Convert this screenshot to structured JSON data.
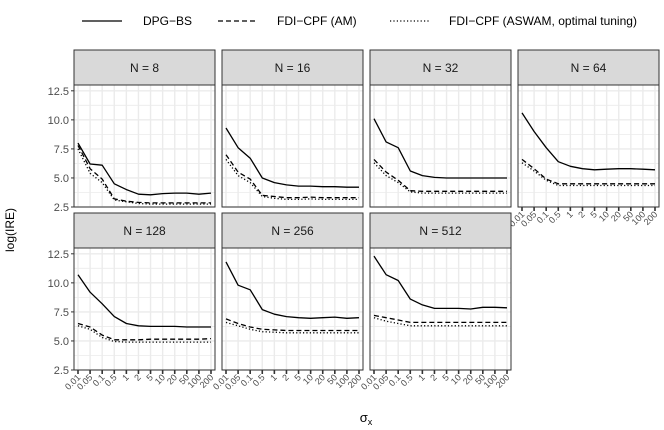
{
  "chart_data": {
    "type": "line",
    "title": "",
    "xlabel": "σx",
    "ylabel": "log(IRE)",
    "x_categories": [
      "0.01",
      "0.05",
      "0.1",
      "0.5",
      "1",
      "2",
      "5",
      "10",
      "20",
      "50",
      "100",
      "200"
    ],
    "ylim": [
      2.5,
      13.0
    ],
    "y_ticks": [
      "2.5",
      "5.0",
      "7.5",
      "10.0",
      "12.5"
    ],
    "legend": {
      "placement": "top",
      "entries": [
        {
          "name": "DPG−BS",
          "style": "solid"
        },
        {
          "name": "FDI−CPF (AM)",
          "style": "dashed"
        },
        {
          "name": "FDI−CPF (ASWAM, optimal tuning)",
          "style": "dotted"
        }
      ]
    },
    "panels": [
      {
        "label": "N = 8",
        "series": [
          {
            "name": "DPG−BS",
            "values": [
              8.0,
              6.2,
              6.1,
              4.5,
              4.0,
              3.6,
              3.55,
              3.65,
              3.7,
              3.7,
              3.6,
              3.7
            ]
          },
          {
            "name": "FDI−CPF (AM)",
            "values": [
              7.8,
              5.8,
              4.9,
              3.2,
              3.0,
              2.9,
              2.85,
              2.85,
              2.85,
              2.85,
              2.85,
              2.85
            ]
          },
          {
            "name": "FDI−CPF (ASWAM, optimal tuning)",
            "values": [
              7.5,
              5.4,
              4.6,
              3.1,
              2.95,
              2.8,
              2.75,
              2.75,
              2.75,
              2.75,
              2.75,
              2.75
            ]
          }
        ]
      },
      {
        "label": "N = 16",
        "series": [
          {
            "name": "DPG−BS",
            "values": [
              9.3,
              7.6,
              6.7,
              5.0,
              4.6,
              4.4,
              4.3,
              4.3,
              4.25,
              4.25,
              4.2,
              4.2
            ]
          },
          {
            "name": "FDI−CPF (AM)",
            "values": [
              7.0,
              5.5,
              4.9,
              3.5,
              3.4,
              3.3,
              3.3,
              3.35,
              3.3,
              3.3,
              3.3,
              3.3
            ]
          },
          {
            "name": "FDI−CPF (ASWAM, optimal tuning)",
            "values": [
              6.6,
              5.2,
              4.6,
              3.4,
              3.25,
              3.15,
              3.15,
              3.2,
              3.15,
              3.15,
              3.15,
              3.15
            ]
          }
        ]
      },
      {
        "label": "N = 32",
        "series": [
          {
            "name": "DPG−BS",
            "values": [
              10.1,
              8.1,
              7.6,
              5.6,
              5.2,
              5.05,
              5.0,
              5.0,
              5.0,
              5.0,
              5.0,
              5.0
            ]
          },
          {
            "name": "FDI−CPF (AM)",
            "values": [
              6.6,
              5.5,
              4.8,
              3.9,
              3.85,
              3.85,
              3.85,
              3.85,
              3.85,
              3.85,
              3.85,
              3.85
            ]
          },
          {
            "name": "FDI−CPF (ASWAM, optimal tuning)",
            "values": [
              6.3,
              5.2,
              4.6,
              3.8,
              3.7,
              3.7,
              3.7,
              3.7,
              3.7,
              3.7,
              3.7,
              3.7
            ]
          }
        ]
      },
      {
        "label": "N = 64",
        "series": [
          {
            "name": "DPG−BS",
            "values": [
              10.6,
              9.0,
              7.6,
              6.4,
              6.0,
              5.8,
              5.7,
              5.75,
              5.8,
              5.8,
              5.75,
              5.7
            ]
          },
          {
            "name": "FDI−CPF (AM)",
            "values": [
              6.6,
              5.8,
              4.9,
              4.5,
              4.5,
              4.5,
              4.5,
              4.5,
              4.5,
              4.5,
              4.5,
              4.5
            ]
          },
          {
            "name": "FDI−CPF (ASWAM, optimal tuning)",
            "values": [
              6.3,
              5.6,
              4.8,
              4.35,
              4.35,
              4.35,
              4.35,
              4.35,
              4.35,
              4.35,
              4.35,
              4.35
            ]
          }
        ]
      },
      {
        "label": "N = 128",
        "series": [
          {
            "name": "DPG−BS",
            "values": [
              10.7,
              9.2,
              8.2,
              7.1,
              6.5,
              6.3,
              6.25,
              6.25,
              6.25,
              6.2,
              6.2,
              6.2
            ]
          },
          {
            "name": "FDI−CPF (AM)",
            "values": [
              6.5,
              6.2,
              5.5,
              5.1,
              5.1,
              5.1,
              5.15,
              5.15,
              5.15,
              5.15,
              5.15,
              5.2
            ]
          },
          {
            "name": "FDI−CPF (ASWAM, optimal tuning)",
            "values": [
              6.3,
              6.0,
              5.3,
              4.95,
              4.9,
              4.9,
              4.9,
              4.9,
              4.9,
              4.9,
              4.9,
              4.9
            ]
          }
        ]
      },
      {
        "label": "N = 256",
        "series": [
          {
            "name": "DPG−BS",
            "values": [
              11.8,
              9.8,
              9.4,
              7.7,
              7.3,
              7.1,
              7.0,
              6.95,
              7.0,
              7.05,
              6.95,
              7.0
            ]
          },
          {
            "name": "FDI−CPF (AM)",
            "values": [
              6.9,
              6.5,
              6.2,
              6.0,
              5.95,
              5.9,
              5.9,
              5.9,
              5.9,
              5.9,
              5.9,
              5.9
            ]
          },
          {
            "name": "FDI−CPF (ASWAM, optimal tuning)",
            "values": [
              6.6,
              6.3,
              6.0,
              5.8,
              5.75,
              5.7,
              5.7,
              5.7,
              5.7,
              5.7,
              5.7,
              5.7
            ]
          }
        ]
      },
      {
        "label": "N = 512",
        "series": [
          {
            "name": "DPG−BS",
            "values": [
              12.3,
              10.7,
              10.2,
              8.6,
              8.1,
              7.8,
              7.8,
              7.8,
              7.75,
              7.9,
              7.9,
              7.85
            ]
          },
          {
            "name": "FDI−CPF (AM)",
            "values": [
              7.2,
              7.0,
              6.8,
              6.6,
              6.6,
              6.6,
              6.6,
              6.6,
              6.6,
              6.6,
              6.6,
              6.6
            ]
          },
          {
            "name": "FDI−CPF (ASWAM, optimal tuning)",
            "values": [
              7.0,
              6.7,
              6.5,
              6.3,
              6.3,
              6.3,
              6.3,
              6.3,
              6.3,
              6.3,
              6.3,
              6.3
            ]
          }
        ]
      }
    ]
  }
}
